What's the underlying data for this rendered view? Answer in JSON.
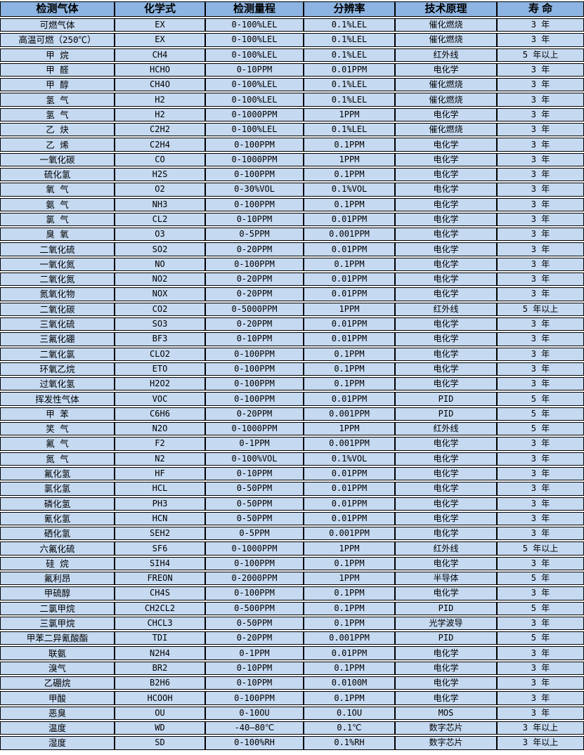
{
  "colors": {
    "page_bg": "#ffffff",
    "header_bg": "#8db4e2",
    "row_bg": "#c5d9f1",
    "grid_border": "#000000",
    "text": "#000000"
  },
  "table": {
    "columns": [
      "检测气体",
      "化学式",
      "检测量程",
      "分辨率",
      "技术原理",
      "寿 命"
    ],
    "rows": [
      [
        "可燃气体",
        "EX",
        "0-100%LEL",
        "0.1%LEL",
        "催化燃烧",
        "3 年"
      ],
      [
        "高温可燃（250℃）",
        "EX",
        "0-100%LEL",
        "0.1%LEL",
        "催化燃烧",
        "3 年"
      ],
      [
        "甲 烷",
        "CH4",
        "0-100%LEL",
        "0.1%LEL",
        "红外线",
        "5 年以上"
      ],
      [
        "甲 醛",
        "HCHO",
        "0-10PPM",
        "0.01PPM",
        "电化学",
        "3 年"
      ],
      [
        "甲 醇",
        "CH4O",
        "0-100%LEL",
        "0.1%LEL",
        "催化燃烧",
        "3 年"
      ],
      [
        "氢 气",
        "H2",
        "0-100%LEL",
        "0.1%LEL",
        "催化燃烧",
        "3 年"
      ],
      [
        "氢 气",
        "H2",
        "0-1000PPM",
        "1PPM",
        "电化学",
        "3 年"
      ],
      [
        "乙 炔",
        "C2H2",
        "0-100%LEL",
        "0.1%LEL",
        "催化燃烧",
        "3 年"
      ],
      [
        "乙 烯",
        "C2H4",
        "0-100PPM",
        "0.1PPM",
        "电化学",
        "3 年"
      ],
      [
        "一氧化碳",
        "CO",
        "0-1000PPM",
        "1PPM",
        "电化学",
        "3 年"
      ],
      [
        "硫化氢",
        "H2S",
        "0-100PPM",
        "0.1PPM",
        "电化学",
        "3 年"
      ],
      [
        "氧 气",
        "O2",
        "0-30%VOL",
        "0.1%VOL",
        "电化学",
        "3 年"
      ],
      [
        "氨 气",
        "NH3",
        "0-100PPM",
        "0.1PPM",
        "电化学",
        "3 年"
      ],
      [
        "氯 气",
        "CL2",
        "0-10PPM",
        "0.01PPM",
        "电化学",
        "3 年"
      ],
      [
        "臭 氧",
        "O3",
        "0-5PPM",
        "0.001PPM",
        "电化学",
        "3 年"
      ],
      [
        "二氧化硫",
        "SO2",
        "0-20PPM",
        "0.01PPM",
        "电化学",
        "3 年"
      ],
      [
        "一氧化氮",
        "NO",
        "0-100PPM",
        "0.1PPM",
        "电化学",
        "3 年"
      ],
      [
        "二氧化氮",
        "NO2",
        "0-20PPM",
        "0.01PPM",
        "电化学",
        "3 年"
      ],
      [
        "氮氧化物",
        "NOX",
        "0-20PPM",
        "0.01PPM",
        "电化学",
        "3 年"
      ],
      [
        "二氧化碳",
        "CO2",
        "0-5000PPM",
        "1PPM",
        "红外线",
        "5 年以上"
      ],
      [
        "三氧化硫",
        "SO3",
        "0-20PPM",
        "0.01PPM",
        "电化学",
        "3 年"
      ],
      [
        "三氟化硼",
        "BF3",
        "0-10PPM",
        "0.01PPM",
        "电化学",
        "3 年"
      ],
      [
        "二氧化氯",
        "CLO2",
        "0-100PPM",
        "0.1PPM",
        "电化学",
        "3 年"
      ],
      [
        "环氧乙烷",
        "ETO",
        "0-100PPM",
        "0.1PPM",
        "电化学",
        "3 年"
      ],
      [
        "过氧化氢",
        "H2O2",
        "0-100PPM",
        "0.1PPM",
        "电化学",
        "3 年"
      ],
      [
        "挥发性气体",
        "VOC",
        "0-100PPM",
        "0.01PPM",
        "PID",
        "5 年"
      ],
      [
        "甲 苯",
        "C6H6",
        "0-20PPM",
        "0.001PPM",
        "PID",
        "5 年"
      ],
      [
        "笑 气",
        "N2O",
        "0-1000PPM",
        "1PPM",
        "红外线",
        "5 年"
      ],
      [
        "氟 气",
        "F2",
        "0-1PPM",
        "0.001PPM",
        "电化学",
        "3 年"
      ],
      [
        "氮 气",
        "N2",
        "0-100%VOL",
        "0.1%VOL",
        "电化学",
        "3 年"
      ],
      [
        "氟化氢",
        "HF",
        "0-10PPM",
        "0.01PPM",
        "电化学",
        "3 年"
      ],
      [
        "氯化氢",
        "HCL",
        "0-50PPM",
        "0.01PPM",
        "电化学",
        "3 年"
      ],
      [
        "磷化氢",
        "PH3",
        "0-50PPM",
        "0.01PPM",
        "电化学",
        "3 年"
      ],
      [
        "氰化氢",
        "HCN",
        "0-50PPM",
        "0.01PPM",
        "电化学",
        "3 年"
      ],
      [
        "硒化氢",
        "SEH2",
        "0-5PPM",
        "0.001PPM",
        "电化学",
        "3 年"
      ],
      [
        "六氟化硫",
        "SF6",
        "0-1000PPM",
        "1PPM",
        "红外线",
        "5 年以上"
      ],
      [
        "硅 烷",
        "SIH4",
        "0-100PPM",
        "0.1PPM",
        "电化学",
        "3 年"
      ],
      [
        "氟利昂",
        "FREON",
        "0-2000PPM",
        "1PPM",
        "半导体",
        "5 年"
      ],
      [
        "甲硫醇",
        "CH4S",
        "0-100PPM",
        "0.1PPM",
        "电化学",
        "3 年"
      ],
      [
        "二氯甲烷",
        "CH2CL2",
        "0-500PPM",
        "0.1PPM",
        "PID",
        "5 年"
      ],
      [
        "三氯甲烷",
        "CHCL3",
        "0-50PPM",
        "0.1PPM",
        "光学波导",
        "3 年"
      ],
      [
        "甲苯二异氰酸酯",
        "TDI",
        "0-20PPM",
        "0.001PPM",
        "PID",
        "5 年"
      ],
      [
        "联氨",
        "N2H4",
        "0-1PPM",
        "0.01PPM",
        "电化学",
        "3 年"
      ],
      [
        "溴气",
        "BR2",
        "0-10PPM",
        "0.1PPM",
        "电化学",
        "3 年"
      ],
      [
        "乙硼烷",
        "B2H6",
        "0-10PPM",
        "0.0100M",
        "电化学",
        "3 年"
      ],
      [
        "甲酸",
        "HCOOH",
        "0-100PPM",
        "0.1PPM",
        "电化学",
        "3 年"
      ],
      [
        "恶臭",
        "OU",
        "0-10OU",
        "0.1OU",
        "MOS",
        "3 年"
      ],
      [
        "温度",
        "WD",
        "-40—80℃",
        "0.1℃",
        "数字芯片",
        "3 年以上"
      ],
      [
        "湿度",
        "SD",
        "0-100%RH",
        "0.1%RH",
        "数字芯片",
        "3 年以上"
      ]
    ]
  }
}
